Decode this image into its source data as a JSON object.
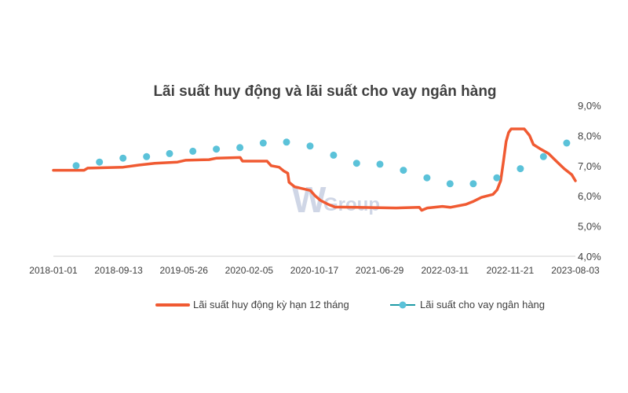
{
  "chart_data": {
    "type": "line",
    "title": "Lãi suất huy động và lãi suất cho vay ngân hàng",
    "x_ticks": [
      "2018-01-01",
      "2018-09-13",
      "2019-05-26",
      "2020-02-05",
      "2020-10-17",
      "2021-06-29",
      "2022-03-11",
      "2022-11-21",
      "2023-08-03"
    ],
    "xlim": [
      "2018-01-01",
      "2023-08-03"
    ],
    "y_ticks": [
      "4,0%",
      "5,0%",
      "6,0%",
      "7,0%",
      "8,0%",
      "9,0%"
    ],
    "ylim": [
      4.0,
      9.0
    ],
    "y_axis_position": "right",
    "grid": false,
    "legend_position": "bottom",
    "series": [
      {
        "name": "Lãi suất huy động kỳ hạn 12 tháng",
        "style": "line",
        "color": "#f05a32",
        "points": [
          [
            "2018-01-01",
            6.85
          ],
          [
            "2018-05-01",
            6.85
          ],
          [
            "2018-05-15",
            6.92
          ],
          [
            "2018-10-01",
            6.95
          ],
          [
            "2018-12-01",
            7.02
          ],
          [
            "2019-02-01",
            7.08
          ],
          [
            "2019-05-01",
            7.12
          ],
          [
            "2019-06-01",
            7.18
          ],
          [
            "2019-09-01",
            7.2
          ],
          [
            "2019-10-01",
            7.25
          ],
          [
            "2020-01-01",
            7.27
          ],
          [
            "2020-01-10",
            7.15
          ],
          [
            "2020-04-15",
            7.15
          ],
          [
            "2020-05-01",
            7.0
          ],
          [
            "2020-06-01",
            6.95
          ],
          [
            "2020-06-20",
            6.82
          ],
          [
            "2020-07-05",
            6.75
          ],
          [
            "2020-07-10",
            6.45
          ],
          [
            "2020-08-01",
            6.3
          ],
          [
            "2020-10-01",
            6.18
          ],
          [
            "2020-10-20",
            6.0
          ],
          [
            "2020-11-10",
            5.85
          ],
          [
            "2020-12-10",
            5.72
          ],
          [
            "2021-01-05",
            5.63
          ],
          [
            "2021-04-01",
            5.62
          ],
          [
            "2021-09-01",
            5.6
          ],
          [
            "2021-12-01",
            5.62
          ],
          [
            "2021-12-10",
            5.52
          ],
          [
            "2022-01-01",
            5.6
          ],
          [
            "2022-03-01",
            5.65
          ],
          [
            "2022-04-01",
            5.62
          ],
          [
            "2022-06-01",
            5.72
          ],
          [
            "2022-07-01",
            5.82
          ],
          [
            "2022-08-01",
            5.95
          ],
          [
            "2022-09-15",
            6.05
          ],
          [
            "2022-10-01",
            6.2
          ],
          [
            "2022-10-15",
            6.5
          ],
          [
            "2022-10-25",
            7.1
          ],
          [
            "2022-11-05",
            7.8
          ],
          [
            "2022-11-15",
            8.1
          ],
          [
            "2022-11-25",
            8.22
          ],
          [
            "2023-01-15",
            8.22
          ],
          [
            "2023-02-05",
            8.0
          ],
          [
            "2023-02-20",
            7.7
          ],
          [
            "2023-03-20",
            7.55
          ],
          [
            "2023-04-20",
            7.4
          ],
          [
            "2023-05-20",
            7.15
          ],
          [
            "2023-06-20",
            6.9
          ],
          [
            "2023-07-20",
            6.7
          ],
          [
            "2023-08-03",
            6.5
          ]
        ]
      },
      {
        "name": "Lãi suất cho vay ngân hàng",
        "style": "scatter",
        "color": "#5bc2d9",
        "points": [
          [
            "2018-03-31",
            7.0
          ],
          [
            "2018-06-30",
            7.12
          ],
          [
            "2018-09-30",
            7.25
          ],
          [
            "2018-12-31",
            7.3
          ],
          [
            "2019-03-31",
            7.4
          ],
          [
            "2019-06-30",
            7.48
          ],
          [
            "2019-09-30",
            7.55
          ],
          [
            "2019-12-31",
            7.6
          ],
          [
            "2020-03-31",
            7.75
          ],
          [
            "2020-06-30",
            7.78
          ],
          [
            "2020-09-30",
            7.65
          ],
          [
            "2020-12-31",
            7.35
          ],
          [
            "2021-03-31",
            7.08
          ],
          [
            "2021-06-30",
            7.05
          ],
          [
            "2021-09-30",
            6.85
          ],
          [
            "2021-12-31",
            6.6
          ],
          [
            "2022-03-31",
            6.4
          ],
          [
            "2022-06-30",
            6.4
          ],
          [
            "2022-09-30",
            6.6
          ],
          [
            "2022-12-31",
            6.9
          ],
          [
            "2023-03-31",
            7.3
          ],
          [
            "2023-06-30",
            7.75
          ]
        ]
      }
    ]
  },
  "watermark": {
    "big": "W",
    "small": "Group"
  }
}
